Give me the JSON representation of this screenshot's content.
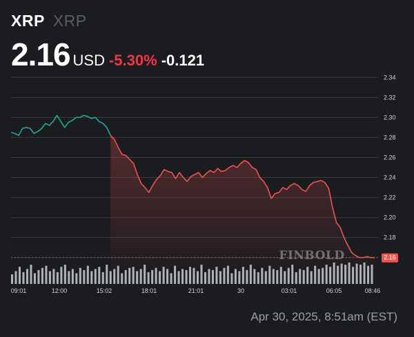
{
  "header": {
    "ticker": "XRP",
    "ticker_sub": "XRP",
    "price": "2.16",
    "currency": "USD",
    "change_pct": "-5.30%",
    "change_abs": "-0.121"
  },
  "watermark": "FINBOLD",
  "footer": {
    "timestamp": "Apr 30, 2025, 8:51am (EST)"
  },
  "colors": {
    "up": "#26a69a",
    "down": "#ef5350",
    "price_label_bg": "#ef5350",
    "grid": "#3a3c42"
  },
  "chart_data": {
    "type": "line",
    "x_ticks": [
      "09:01",
      "12:00",
      "15:02",
      "18:01",
      "21:01",
      "30",
      "03:01",
      "06:05",
      "08:46"
    ],
    "y_ticks": [
      "2.34",
      "2.32",
      "2.30",
      "2.28",
      "2.26",
      "2.24",
      "2.22",
      "2.20",
      "2.18",
      "2.16"
    ],
    "ylim": [
      2.155,
      2.345
    ],
    "grid": true,
    "current_price_label": "2.16",
    "x": [
      0,
      1,
      2,
      3,
      4,
      5,
      6,
      7,
      8,
      9,
      10,
      11,
      12,
      13,
      14,
      15,
      16,
      17,
      18,
      19,
      20,
      21,
      22,
      23,
      24,
      25,
      26,
      27,
      28,
      29,
      30,
      31,
      32,
      33,
      34,
      35,
      36,
      37,
      38,
      39,
      40,
      41,
      42,
      43,
      44,
      45,
      46,
      47,
      48,
      49,
      50,
      51,
      52,
      53,
      54,
      55,
      56,
      57,
      58,
      59,
      60,
      61,
      62,
      63,
      64,
      65,
      66,
      67,
      68,
      69,
      70,
      71,
      72,
      73,
      74,
      75,
      76,
      77,
      78,
      79,
      80,
      81,
      82,
      83,
      84,
      85,
      86,
      87,
      88,
      89,
      90,
      91,
      92,
      93,
      94,
      95
    ],
    "y": [
      2.285,
      2.284,
      2.282,
      2.289,
      2.29,
      2.289,
      2.284,
      2.286,
      2.289,
      2.294,
      2.292,
      2.296,
      2.302,
      2.296,
      2.29,
      2.295,
      2.297,
      2.3,
      2.3,
      2.302,
      2.301,
      2.299,
      2.3,
      2.296,
      2.294,
      2.29,
      2.282,
      2.278,
      2.27,
      2.263,
      2.262,
      2.258,
      2.254,
      2.243,
      2.234,
      2.23,
      2.225,
      2.232,
      2.238,
      2.242,
      2.248,
      2.246,
      2.245,
      2.239,
      2.245,
      2.24,
      2.236,
      2.241,
      2.243,
      2.245,
      2.24,
      2.244,
      2.247,
      2.245,
      2.249,
      2.246,
      2.247,
      2.25,
      2.252,
      2.25,
      2.254,
      2.257,
      2.255,
      2.25,
      2.248,
      2.24,
      2.236,
      2.23,
      2.219,
      2.224,
      2.225,
      2.23,
      2.228,
      2.232,
      2.234,
      2.232,
      2.228,
      2.226,
      2.232,
      2.235,
      2.236,
      2.237,
      2.235,
      2.229,
      2.21,
      2.195,
      2.19,
      2.18,
      2.172,
      2.165,
      2.162,
      2.16,
      2.16,
      2.161,
      2.16,
      2.16
    ],
    "volume": [
      0.45,
      0.6,
      0.8,
      0.55,
      0.7,
      0.9,
      0.5,
      0.65,
      0.75,
      0.85,
      0.6,
      0.7,
      0.55,
      0.8,
      0.9,
      0.6,
      0.7,
      0.5,
      0.75,
      0.65,
      0.85,
      0.6,
      0.7,
      0.8,
      0.55,
      0.9,
      0.6,
      0.7,
      0.85,
      0.5,
      0.65,
      0.75,
      0.8,
      0.6,
      0.7,
      0.9,
      0.55,
      0.65,
      0.75,
      0.6,
      0.8,
      0.7,
      0.5,
      0.85,
      0.6,
      0.7,
      0.65,
      0.8,
      0.75,
      0.6,
      0.9,
      0.55,
      0.7,
      0.65,
      0.8,
      0.6,
      0.75,
      0.85,
      0.5,
      0.7,
      0.6,
      0.8,
      0.65,
      0.9,
      0.7,
      0.55,
      0.75,
      0.6,
      0.85,
      0.7,
      0.65,
      0.8,
      0.6,
      0.75,
      0.9,
      0.55,
      0.7,
      0.65,
      0.8,
      0.6,
      0.85,
      0.7,
      0.75,
      0.9,
      0.8,
      1.0,
      0.85,
      0.95,
      0.9,
      1.0,
      0.8,
      0.95,
      0.9,
      1.0,
      0.85,
      0.9
    ]
  }
}
